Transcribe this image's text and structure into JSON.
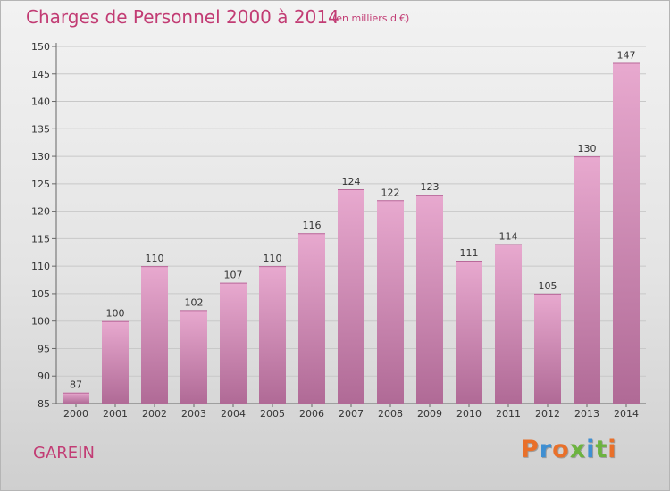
{
  "header": {
    "title": "Charges de Personnel 2000 à 2014",
    "subtitle": "(en milliers d'€)"
  },
  "footer": {
    "commune": "GAREIN",
    "logo_letters": [
      "P",
      "r",
      "o",
      "x",
      "i",
      "t",
      "i"
    ],
    "logo_colors": [
      "#e9702a",
      "#3f8fd2",
      "#e9702a",
      "#6cb33f",
      "#3f8fd2",
      "#6cb33f",
      "#e9702a"
    ]
  },
  "chart_data": {
    "type": "bar",
    "categories": [
      "2000",
      "2001",
      "2002",
      "2003",
      "2004",
      "2005",
      "2006",
      "2007",
      "2008",
      "2009",
      "2010",
      "2011",
      "2012",
      "2013",
      "2014"
    ],
    "values": [
      87,
      100,
      110,
      102,
      107,
      110,
      116,
      124,
      122,
      123,
      111,
      114,
      105,
      130,
      147
    ],
    "data_labels": [
      "87",
      "100",
      "110",
      "102",
      "107",
      "110",
      "116",
      "124",
      "122",
      "123",
      "111",
      "114",
      "105",
      "130",
      "147"
    ],
    "title": "Charges de Personnel 2000 à 2014",
    "xlabel": "",
    "ylabel": "",
    "ylim": [
      85,
      150
    ],
    "yticks": [
      85,
      90,
      95,
      100,
      105,
      110,
      115,
      120,
      125,
      130,
      135,
      140,
      145,
      150
    ],
    "ytick_labels": [
      "85",
      "90",
      "95",
      "100",
      "105",
      "110",
      "115",
      "120",
      "125",
      "130",
      "135",
      "140",
      "145",
      "150"
    ],
    "grid": true,
    "bar_color_top": "#e8a9cf",
    "bar_color_bottom": "#b06a96",
    "text_color": "#333333",
    "grid_color": "#c8c8c8"
  }
}
